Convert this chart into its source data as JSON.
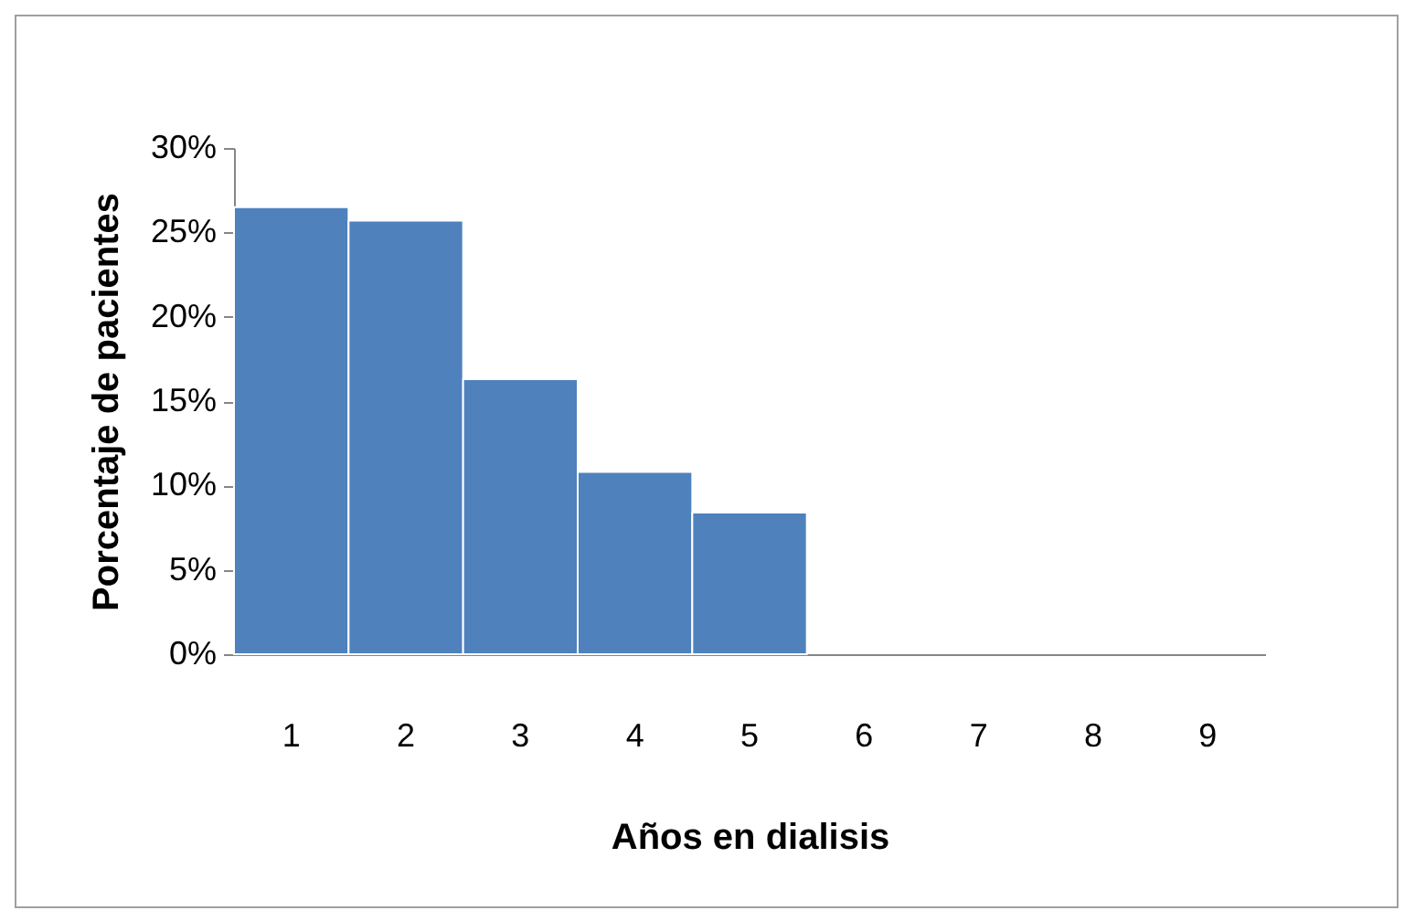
{
  "chart_data": {
    "type": "bar",
    "xlabel": "Años en dialisis",
    "ylabel": "Porcentaje de pacientes",
    "categories": [
      "1",
      "2",
      "3",
      "4",
      "5",
      "6",
      "7",
      "8",
      "9"
    ],
    "values": [
      26.5,
      25.7,
      16.3,
      10.8,
      8.4,
      null,
      null,
      null,
      null
    ],
    "color": "#4f81bd",
    "ylim": [
      0,
      30
    ],
    "yticks": [
      {
        "value": 0,
        "label": "0%"
      },
      {
        "value": 5,
        "label": "5%"
      },
      {
        "value": 10,
        "label": "10%"
      },
      {
        "value": 15,
        "label": "15%"
      },
      {
        "value": 20,
        "label": "20%"
      },
      {
        "value": 25,
        "label": "25%"
      },
      {
        "value": 30,
        "label": "30%"
      }
    ],
    "grid": false
  }
}
